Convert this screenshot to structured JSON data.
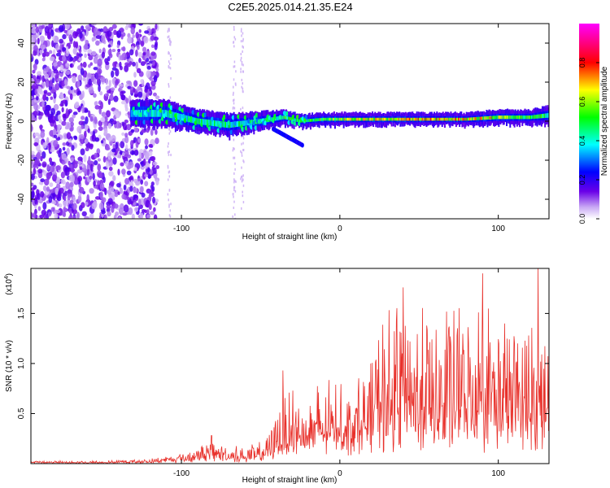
{
  "page": {
    "title": "C2E5.2025.014.21.35.E24"
  },
  "chart_data": [
    {
      "type": "heatmap",
      "title": "C2E5.2025.014.21.35.E24",
      "xlabel": "Height of straight line (km)",
      "ylabel": "Frequency (Hz)",
      "xlim": [
        -195,
        132
      ],
      "ylim": [
        -50,
        50
      ],
      "x_ticks": [
        {
          "value": -100,
          "label": "-100"
        },
        {
          "value": 0,
          "label": "0"
        },
        {
          "value": 100,
          "label": "100"
        }
      ],
      "y_ticks": [
        {
          "value": -40,
          "label": "-40"
        },
        {
          "value": -20,
          "label": "-20"
        },
        {
          "value": 0,
          "label": "0"
        },
        {
          "value": 20,
          "label": "20"
        },
        {
          "value": 40,
          "label": "40"
        }
      ],
      "colorbar": {
        "label": "Normalized spectral amplitude",
        "range": [
          0,
          1
        ],
        "ticks": [
          {
            "value": 0.0,
            "label": "0.0"
          },
          {
            "value": 0.2,
            "label": "0.2"
          },
          {
            "value": 0.4,
            "label": "0.4"
          },
          {
            "value": 0.6,
            "label": "0.6"
          },
          {
            "value": 0.8,
            "label": "0.8"
          }
        ],
        "colors": [
          "#ffffff",
          "#a06cf0",
          "#5a00e6",
          "#0000ff",
          "#00ffff",
          "#00ff00",
          "#ffff00",
          "#ff0000",
          "#ff00ff"
        ]
      },
      "band_trace": {
        "description": "dominant frequency band",
        "x": [
          -132,
          -110,
          -90,
          -70,
          -50,
          -35,
          -25,
          -10,
          0,
          20,
          50,
          80,
          100,
          120,
          132
        ],
        "center": [
          4,
          4,
          0,
          -2,
          0,
          2,
          0,
          1,
          1,
          1,
          1,
          1,
          2,
          2,
          3
        ],
        "half_width": [
          6,
          6,
          5,
          5,
          4,
          3,
          2.5,
          2.5,
          2.5,
          2.5,
          2.5,
          2.5,
          3,
          3,
          4
        ],
        "intensity": [
          0.35,
          0.4,
          0.45,
          0.45,
          0.45,
          0.5,
          0.5,
          0.55,
          0.6,
          0.65,
          0.7,
          0.7,
          0.6,
          0.55,
          0.5
        ]
      },
      "noise_region": {
        "x_from": -195,
        "x_to": -125,
        "level": "high"
      },
      "series_style": {
        "band_peak_color": "#ff0000"
      }
    },
    {
      "type": "line",
      "xlabel": "Height of straight line (km)",
      "ylabel": "SNR (10 * v/v)",
      "y_scale_label": "(x10",
      "y_scale_exponent": "4",
      "y_scale_suffix": ")",
      "xlim": [
        -195,
        132
      ],
      "ylim": [
        0,
        1.95
      ],
      "x_ticks": [
        {
          "value": -100,
          "label": "-100"
        },
        {
          "value": 0,
          "label": "0"
        },
        {
          "value": 100,
          "label": "100"
        }
      ],
      "y_ticks": [
        {
          "value": 0.5,
          "label": "0.5"
        },
        {
          "value": 1.0,
          "label": "1.0"
        },
        {
          "value": 1.5,
          "label": "1.5"
        }
      ],
      "color": "#e8302a",
      "envelope": {
        "x": [
          -195,
          -150,
          -120,
          -100,
          -90,
          -80,
          -70,
          -60,
          -50,
          -45,
          -40,
          -35,
          -30,
          -25,
          -20,
          -15,
          -10,
          -5,
          0,
          5,
          10,
          15,
          20,
          25,
          30,
          40,
          50,
          60,
          70,
          80,
          90,
          100,
          110,
          120,
          132
        ],
        "base": [
          0.01,
          0.01,
          0.02,
          0.04,
          0.06,
          0.08,
          0.06,
          0.05,
          0.08,
          0.12,
          0.16,
          0.2,
          0.22,
          0.24,
          0.26,
          0.28,
          0.3,
          0.32,
          0.35,
          0.37,
          0.38,
          0.4,
          0.45,
          0.48,
          0.5,
          0.5,
          0.5,
          0.5,
          0.5,
          0.5,
          0.5,
          0.5,
          0.5,
          0.5,
          0.5
        ],
        "peak": [
          0.03,
          0.03,
          0.05,
          0.12,
          0.18,
          0.25,
          0.2,
          0.18,
          0.22,
          0.3,
          0.6,
          0.75,
          0.9,
          0.7,
          0.75,
          0.8,
          0.85,
          0.9,
          0.85,
          0.7,
          0.95,
          0.9,
          1.2,
          1.45,
          1.55,
          1.75,
          1.65,
          1.6,
          1.7,
          1.6,
          1.8,
          1.6,
          1.5,
          1.55,
          1.5
        ]
      },
      "notable_peaks": [
        {
          "x": -81,
          "y": 0.28
        },
        {
          "x": -36,
          "y": 0.93
        },
        {
          "x": 40,
          "y": 1.76
        },
        {
          "x": 90,
          "y": 1.9
        },
        {
          "x": 125,
          "y": 1.95
        }
      ]
    }
  ]
}
